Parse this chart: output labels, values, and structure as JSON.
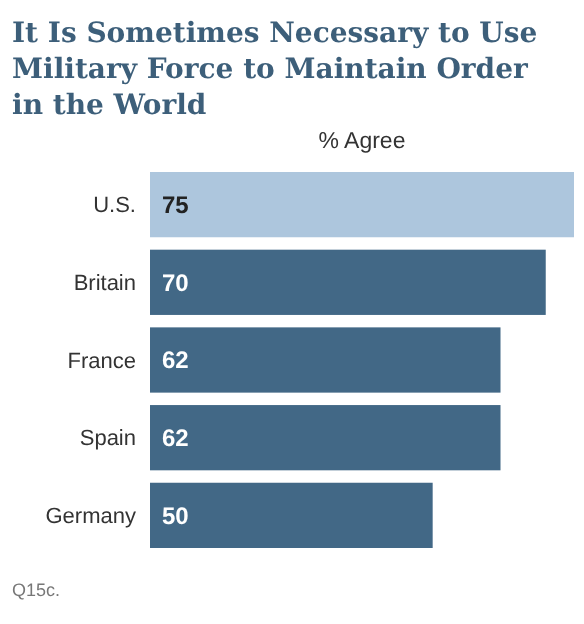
{
  "chart_data": {
    "type": "bar",
    "orientation": "horizontal",
    "title": "It Is Sometimes Necessary to Use Military Force to Maintain Order in the World",
    "subtitle": "% Agree",
    "categories": [
      "U.S.",
      "Britain",
      "France",
      "Spain",
      "Germany"
    ],
    "values": [
      75,
      70,
      62,
      62,
      50
    ],
    "colors": [
      "#adc6dd",
      "#426886",
      "#426886",
      "#426886",
      "#426886"
    ],
    "data_labels": true,
    "annotations": [
      "Q15c."
    ]
  }
}
